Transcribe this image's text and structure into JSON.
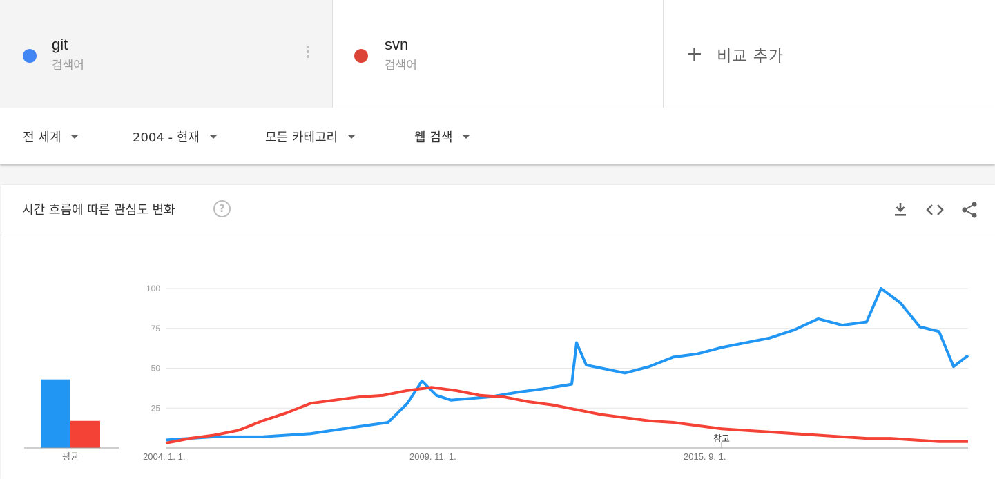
{
  "terms": [
    {
      "name": "git",
      "type": "검색어",
      "color": "#4285f4"
    },
    {
      "name": "svn",
      "type": "검색어",
      "color": "#db4437"
    }
  ],
  "add_compare": "비교 추가",
  "filters": {
    "region": "전 세계",
    "period": "2004 - 현재",
    "category": "모든 카테고리",
    "search_type": "웹 검색"
  },
  "card": {
    "title": "시간 흐름에 따른 관심도 변화",
    "help_icon": "?",
    "tools": [
      "download-icon",
      "embed-icon",
      "share-icon"
    ]
  },
  "chart_data": {
    "type": "line",
    "yticks": [
      25,
      50,
      75,
      100
    ],
    "ylim": [
      0,
      100
    ],
    "xticks": [
      "2004. 1. 1.",
      "2009. 11. 1.",
      "2015. 9. 1."
    ],
    "annotation": "참고",
    "average_label": "평균",
    "averages": [
      {
        "name": "git",
        "value": 43,
        "color": "#2196f3"
      },
      {
        "name": "svn",
        "value": 17,
        "color": "#f44336"
      }
    ],
    "series": [
      {
        "name": "git",
        "color": "#2196f3",
        "x": [
          2004.0,
          2005.0,
          2006.0,
          2007.0,
          2007.9,
          2008.6,
          2009.0,
          2009.3,
          2009.6,
          2009.9,
          2010.3,
          2010.7,
          2011.3,
          2011.8,
          2012.4,
          2012.5,
          2012.7,
          2013.5,
          2014.0,
          2014.5,
          2015.0,
          2015.5,
          2016.0,
          2016.5,
          2017.0,
          2017.5,
          2018.0,
          2018.5,
          2018.8,
          2019.2,
          2019.6,
          2020.0,
          2020.3,
          2020.6
        ],
        "values": [
          5,
          7,
          7,
          9,
          13,
          16,
          28,
          42,
          33,
          30,
          31,
          32,
          35,
          37,
          40,
          66,
          52,
          47,
          51,
          57,
          59,
          63,
          66,
          69,
          74,
          81,
          77,
          79,
          100,
          91,
          76,
          73,
          51,
          58
        ]
      },
      {
        "name": "svn",
        "color": "#f44336",
        "x": [
          2004.0,
          2004.5,
          2005.0,
          2005.5,
          2006.0,
          2006.5,
          2007.0,
          2007.5,
          2008.0,
          2008.5,
          2009.0,
          2009.5,
          2010.0,
          2010.5,
          2011.0,
          2011.5,
          2012.0,
          2012.5,
          2013.0,
          2013.5,
          2014.0,
          2014.5,
          2015.0,
          2015.5,
          2016.0,
          2016.5,
          2017.0,
          2017.5,
          2018.0,
          2018.5,
          2019.0,
          2019.5,
          2020.0,
          2020.6
        ],
        "values": [
          3,
          6,
          8,
          11,
          17,
          22,
          28,
          30,
          32,
          33,
          36,
          38,
          36,
          33,
          32,
          29,
          27,
          24,
          21,
          19,
          17,
          16,
          14,
          12,
          11,
          10,
          9,
          8,
          7,
          6,
          6,
          5,
          4,
          4
        ]
      }
    ],
    "xlim": [
      2004.0,
      2020.6
    ]
  }
}
